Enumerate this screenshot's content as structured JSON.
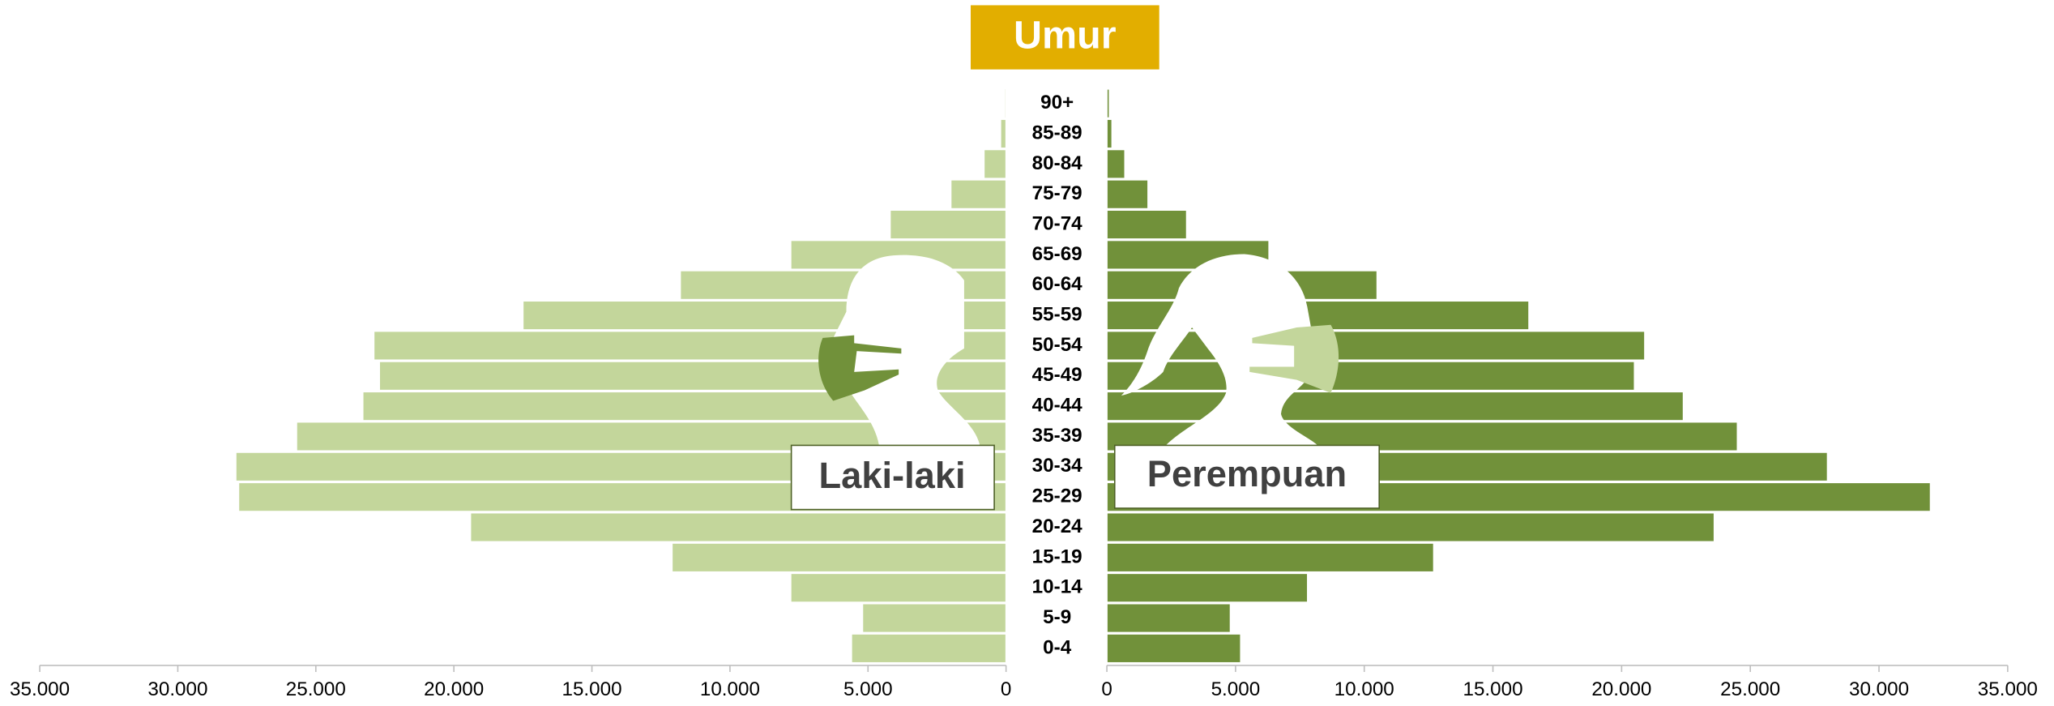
{
  "chart_data": {
    "type": "pyramid",
    "title": "Umur",
    "categories": [
      "0-4",
      "5-9",
      "10-14",
      "15-19",
      "20-24",
      "25-29",
      "30-34",
      "35-39",
      "40-44",
      "45-49",
      "50-54",
      "55-59",
      "60-64",
      "65-69",
      "70-74",
      "75-79",
      "80-84",
      "85-89",
      "90+"
    ],
    "series": [
      {
        "name": "Laki-laki",
        "color": "#c3d69b",
        "values": [
          5600,
          5200,
          7800,
          12100,
          19400,
          27800,
          27900,
          25700,
          23300,
          22700,
          22900,
          17500,
          11800,
          7800,
          4200,
          2000,
          800,
          200,
          50
        ]
      },
      {
        "name": "Perempuan",
        "color": "#71913a",
        "values": [
          5200,
          4800,
          7800,
          12700,
          23600,
          32000,
          28000,
          24500,
          22400,
          20500,
          20900,
          16400,
          10500,
          6300,
          3100,
          1600,
          700,
          200,
          100
        ]
      }
    ],
    "xlim": [
      0,
      35000
    ],
    "xticks": [
      0,
      {
        "value": 5000,
        "label": "5.000"
      },
      {
        "value": 10000,
        "label": "10.000"
      },
      {
        "value": 15000,
        "label": "15.000"
      },
      {
        "value": 20000,
        "label": "20.000"
      },
      {
        "value": 25000,
        "label": "25.000"
      },
      {
        "value": 30000,
        "label": "30.000"
      },
      {
        "value": 35000,
        "label": "35.000"
      }
    ]
  }
}
